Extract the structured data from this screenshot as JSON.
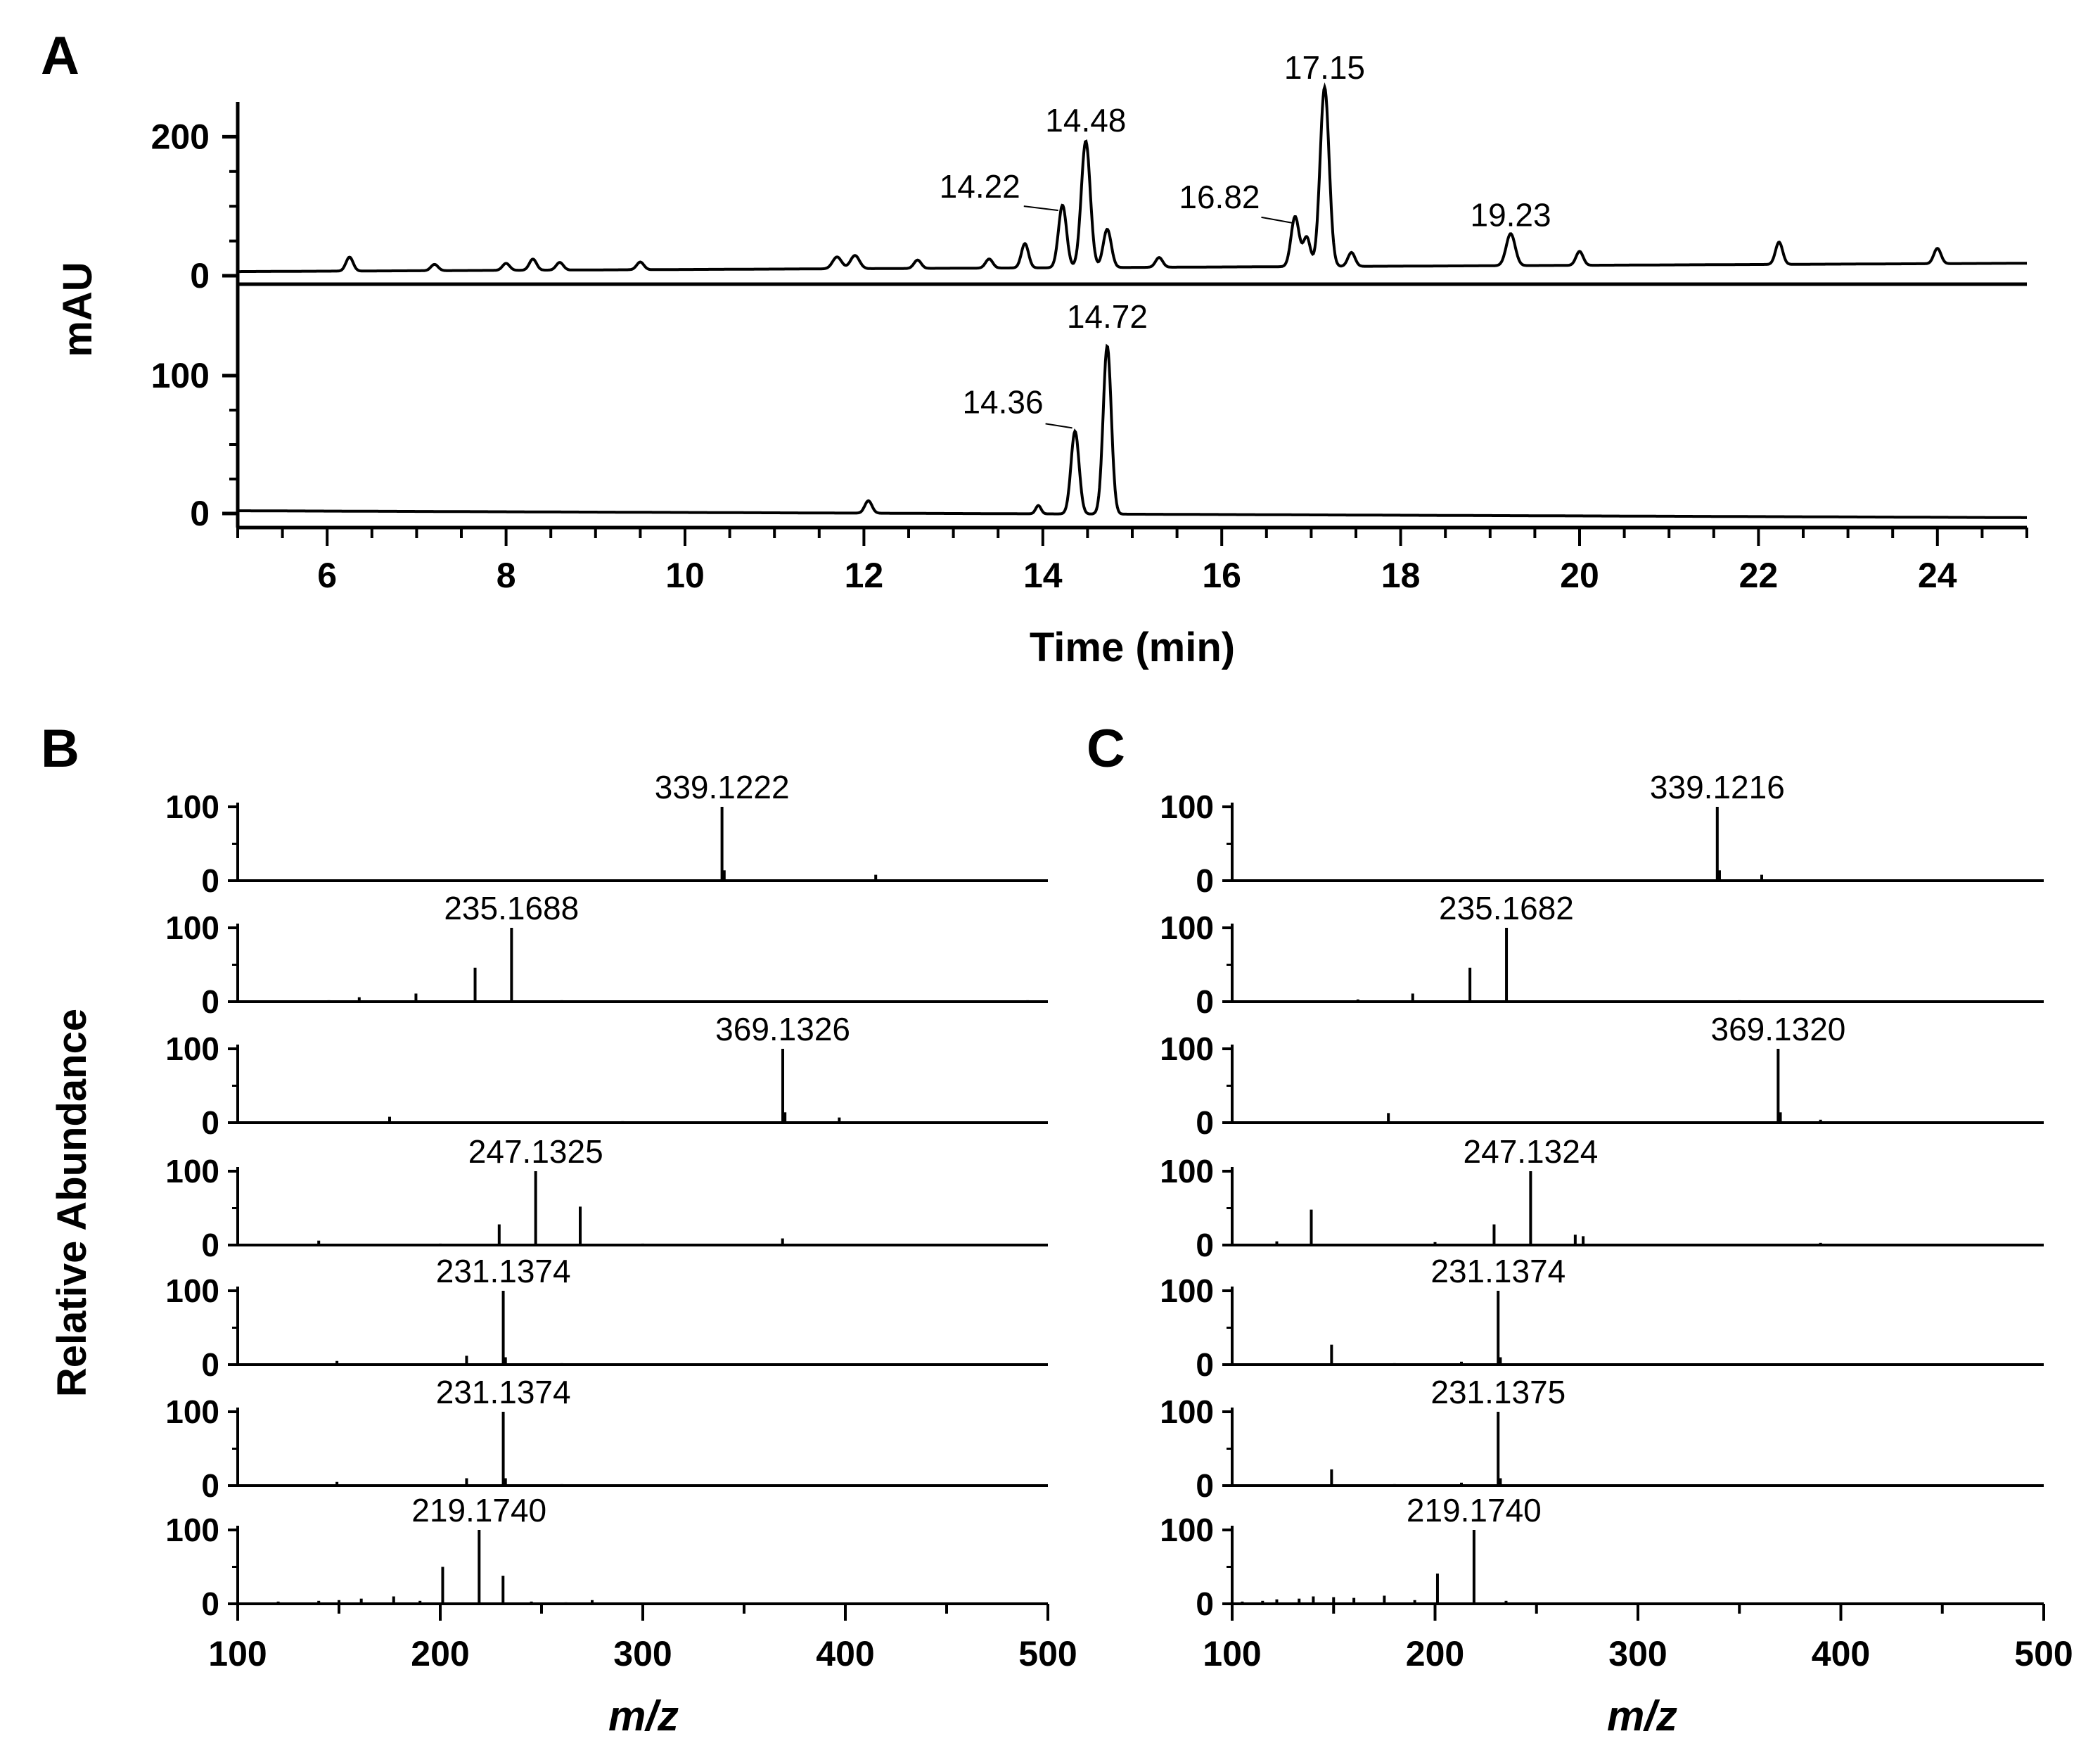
{
  "chart_data": [
    {
      "id": "A",
      "type": "line",
      "panel_label": "A",
      "xlabel": "Time (min)",
      "ylabel": "mAU",
      "xlim": [
        5,
        25
      ],
      "x_ticks": [
        6,
        8,
        10,
        12,
        14,
        16,
        18,
        20,
        22,
        24
      ],
      "traces": [
        {
          "ylim": [
            0,
            250
          ],
          "y_ticks": [
            0,
            200
          ],
          "baseline": 6,
          "baseline_end": 18,
          "peaks": [
            {
              "x": 6.25,
              "y": 20,
              "w": 0.04
            },
            {
              "x": 7.2,
              "y": 9,
              "w": 0.04
            },
            {
              "x": 8.0,
              "y": 10,
              "w": 0.04
            },
            {
              "x": 8.3,
              "y": 16,
              "w": 0.04
            },
            {
              "x": 8.6,
              "y": 11,
              "w": 0.04
            },
            {
              "x": 9.5,
              "y": 11,
              "w": 0.04
            },
            {
              "x": 11.7,
              "y": 17,
              "w": 0.05
            },
            {
              "x": 11.9,
              "y": 19,
              "w": 0.05
            },
            {
              "x": 12.6,
              "y": 12,
              "w": 0.04
            },
            {
              "x": 13.4,
              "y": 13,
              "w": 0.04
            },
            {
              "x": 13.8,
              "y": 35,
              "w": 0.04
            },
            {
              "x": 14.22,
              "y": 90,
              "w": 0.045,
              "label": "14.22"
            },
            {
              "x": 14.48,
              "y": 182,
              "w": 0.05,
              "label": "14.48"
            },
            {
              "x": 14.72,
              "y": 55,
              "w": 0.045
            },
            {
              "x": 15.3,
              "y": 14,
              "w": 0.04
            },
            {
              "x": 16.82,
              "y": 72,
              "w": 0.045,
              "label": "16.82"
            },
            {
              "x": 16.95,
              "y": 42,
              "w": 0.04
            },
            {
              "x": 17.15,
              "y": 258,
              "w": 0.05,
              "label": "17.15"
            },
            {
              "x": 17.45,
              "y": 20,
              "w": 0.04
            },
            {
              "x": 19.23,
              "y": 46,
              "w": 0.05,
              "label": "19.23"
            },
            {
              "x": 20.0,
              "y": 20,
              "w": 0.04
            },
            {
              "x": 22.23,
              "y": 32,
              "w": 0.04
            },
            {
              "x": 24.0,
              "y": 22,
              "w": 0.04
            }
          ]
        },
        {
          "ylim": [
            0,
            125
          ],
          "y_ticks": [
            0,
            100
          ],
          "baseline": 2,
          "baseline_end": -3,
          "peaks": [
            {
              "x": 12.05,
              "y": 9,
              "w": 0.04
            },
            {
              "x": 13.95,
              "y": 6,
              "w": 0.03
            },
            {
              "x": 14.36,
              "y": 60,
              "w": 0.045,
              "label": "14.36"
            },
            {
              "x": 14.72,
              "y": 122,
              "w": 0.045,
              "label": "14.72"
            }
          ]
        }
      ]
    },
    {
      "id": "B",
      "type": "bar",
      "panel_label": "B",
      "xlabel": "m/z",
      "ylabel": "Relative Abundance",
      "xlim": [
        100,
        500
      ],
      "x_ticks": [
        100,
        200,
        300,
        400,
        500
      ],
      "y_ticks": [
        0,
        100
      ],
      "spectra": [
        {
          "label": "339.1222",
          "label_mz": 339.1222,
          "peaks": [
            [
              339.1,
              100
            ],
            [
              340.2,
              14
            ],
            [
              415,
              8
            ],
            [
              135,
              1
            ],
            [
              240,
              1
            ],
            [
              290,
              1
            ],
            [
              475,
              1
            ]
          ]
        },
        {
          "label": "235.1688",
          "label_mz": 235.1688,
          "peaks": [
            [
              235.2,
              100
            ],
            [
              217.2,
              46
            ],
            [
              188,
              11
            ],
            [
              160,
              6
            ],
            [
              145,
              2
            ],
            [
              260,
              2
            ],
            [
              490,
              2
            ]
          ]
        },
        {
          "label": "369.1326",
          "label_mz": 369.1326,
          "peaks": [
            [
              369.1,
              100
            ],
            [
              370.2,
              14
            ],
            [
              397,
              7
            ],
            [
              175,
              8
            ],
            [
              290,
              2
            ],
            [
              455,
              1
            ]
          ]
        },
        {
          "label": "247.1325",
          "label_mz": 247.1325,
          "peaks": [
            [
              247.1,
              100
            ],
            [
              269.1,
              52
            ],
            [
              229.1,
              28
            ],
            [
              369,
              9
            ],
            [
              140,
              6
            ],
            [
              200,
              2
            ],
            [
              300,
              2
            ]
          ]
        },
        {
          "label": "231.1374",
          "label_mz": 231.1374,
          "peaks": [
            [
              231.1,
              100
            ],
            [
              232.2,
              10
            ],
            [
              213,
              12
            ],
            [
              149,
              5
            ],
            [
              260,
              2
            ]
          ]
        },
        {
          "label": "231.1374",
          "label_mz": 231.1374,
          "peaks": [
            [
              231.1,
              100
            ],
            [
              232.2,
              10
            ],
            [
              213,
              10
            ],
            [
              149,
              5
            ],
            [
              260,
              2
            ]
          ]
        },
        {
          "label": "219.1740",
          "label_mz": 219.174,
          "peaks": [
            [
              219.2,
              100
            ],
            [
              201.2,
              50
            ],
            [
              231,
              38
            ],
            [
              177,
              10
            ],
            [
              161,
              7
            ],
            [
              150,
              5
            ],
            [
              140,
              4
            ],
            [
              120,
              3
            ],
            [
              190,
              4
            ],
            [
              245,
              3
            ],
            [
              262,
              2
            ],
            [
              275,
              5
            ]
          ]
        }
      ]
    },
    {
      "id": "C",
      "type": "bar",
      "panel_label": "C",
      "xlabel": "m/z",
      "ylabel": "",
      "xlim": [
        100,
        500
      ],
      "x_ticks": [
        100,
        200,
        300,
        400,
        500
      ],
      "y_ticks": [
        0,
        100
      ],
      "spectra": [
        {
          "label": "339.1216",
          "label_mz": 339.1216,
          "peaks": [
            [
              339.1,
              100
            ],
            [
              340.2,
              14
            ],
            [
              361,
              8
            ],
            [
              200,
              1
            ],
            [
              450,
              1
            ]
          ]
        },
        {
          "label": "235.1682",
          "label_mz": 235.1682,
          "peaks": [
            [
              235.2,
              100
            ],
            [
              217.2,
              46
            ],
            [
              189,
              11
            ],
            [
              162,
              3
            ],
            [
              350,
              2
            ]
          ]
        },
        {
          "label": "369.1320",
          "label_mz": 369.132,
          "peaks": [
            [
              369.1,
              100
            ],
            [
              370.2,
              14
            ],
            [
              390,
              4
            ],
            [
              177,
              13
            ],
            [
              290,
              1
            ]
          ]
        },
        {
          "label": "247.1324",
          "label_mz": 247.1324,
          "peaks": [
            [
              247.1,
              100
            ],
            [
              139,
              48
            ],
            [
              229.1,
              28
            ],
            [
              269.1,
              14
            ],
            [
              273,
              12
            ],
            [
              122,
              5
            ],
            [
              200,
              4
            ],
            [
              390,
              3
            ]
          ]
        },
        {
          "label": "231.1374",
          "label_mz": 231.1374,
          "peaks": [
            [
              231.1,
              100
            ],
            [
              232.2,
              10
            ],
            [
              149,
              27
            ],
            [
              213,
              4
            ],
            [
              180,
              2
            ]
          ]
        },
        {
          "label": "231.1375",
          "label_mz": 231.1375,
          "peaks": [
            [
              231.1,
              100
            ],
            [
              232.2,
              10
            ],
            [
              149,
              22
            ],
            [
              213,
              4
            ],
            [
              180,
              2
            ]
          ]
        },
        {
          "label": "219.1740",
          "label_mz": 219.174,
          "peaks": [
            [
              219.2,
              100
            ],
            [
              201.2,
              41
            ],
            [
              175,
              11
            ],
            [
              160,
              8
            ],
            [
              150,
              9
            ],
            [
              140,
              10
            ],
            [
              133,
              7
            ],
            [
              122,
              6
            ],
            [
              115,
              4
            ],
            [
              105,
              3
            ],
            [
              190,
              5
            ],
            [
              235,
              4
            ]
          ]
        }
      ]
    }
  ]
}
